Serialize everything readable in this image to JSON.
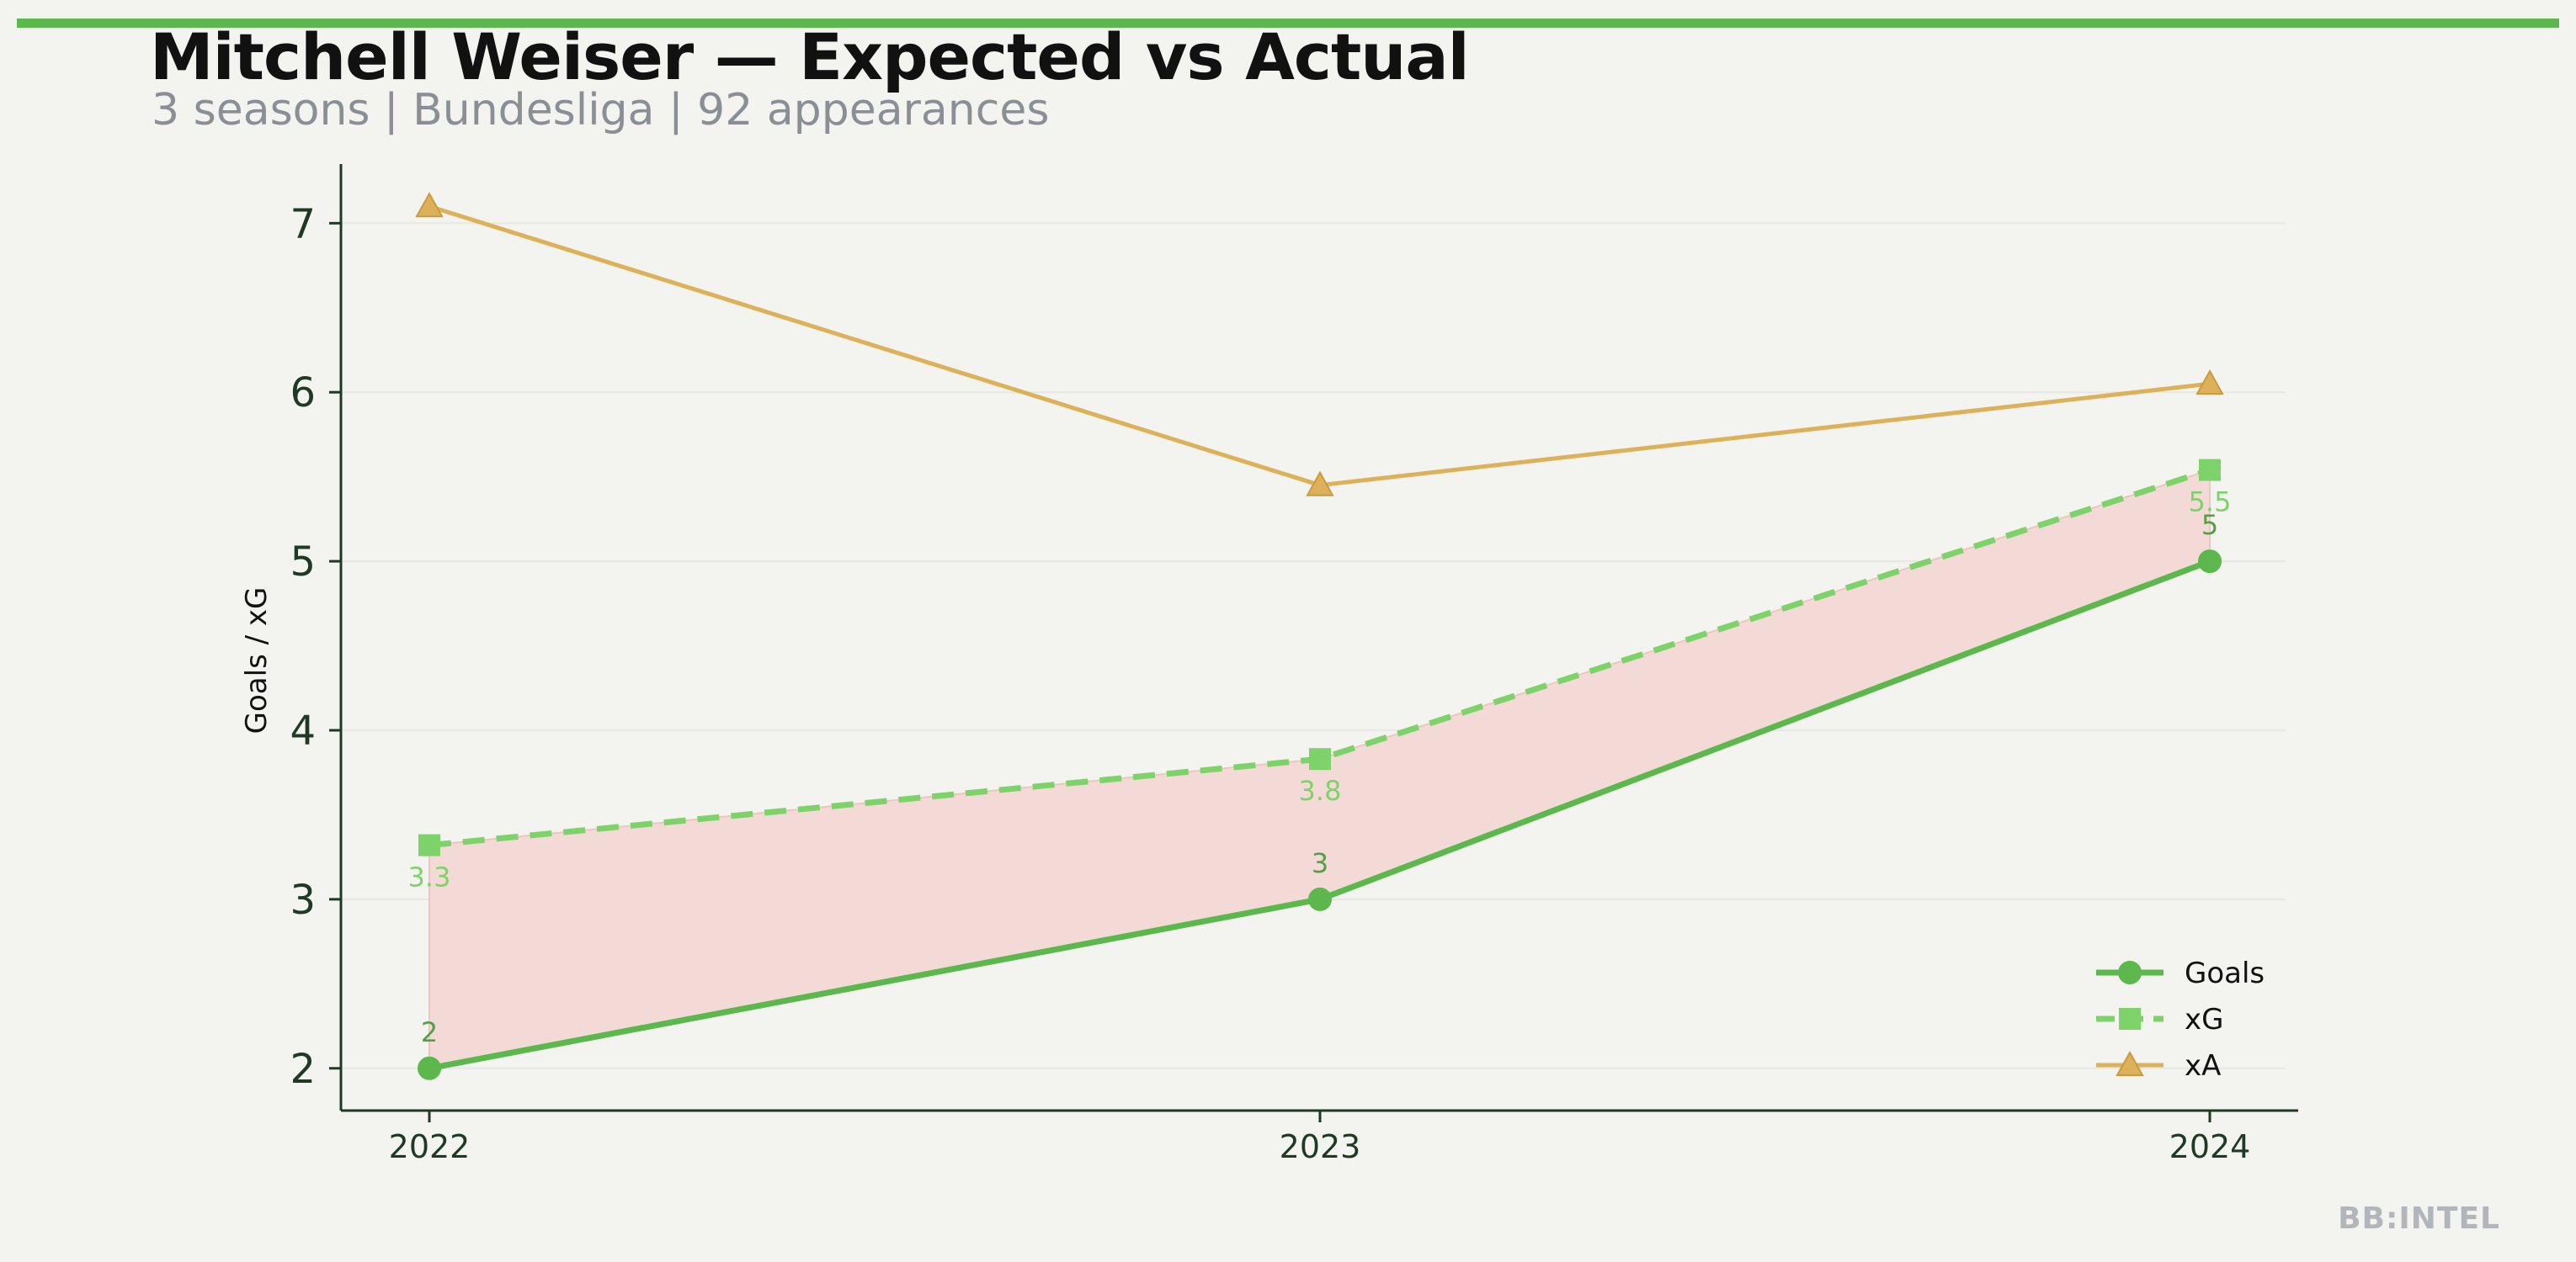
{
  "header": {
    "title": "Mitchell Weiser — Expected vs Actual",
    "subtitle": "3 seasons | Bundesliga | 92 appearances"
  },
  "footer": {
    "watermark": "BB:INTEL"
  },
  "colors": {
    "accent_bar": "#5cb84d",
    "goals": "#5cb84d",
    "xg": "#7dd36a",
    "xa": "#ddb15a",
    "fill": "#f5d9d5",
    "axis": "#1e3a24",
    "background": "#f3f4ef"
  },
  "chart_data": {
    "type": "line",
    "x": [
      "2022",
      "2023",
      "2024"
    ],
    "series": [
      {
        "name": "Goals",
        "values": [
          2,
          3,
          5
        ],
        "style": "solid",
        "marker": "circle",
        "labels": [
          "2",
          "3",
          "5"
        ]
      },
      {
        "name": "xG",
        "values": [
          3.32,
          3.83,
          5.54
        ],
        "style": "dashed",
        "marker": "square",
        "labels": [
          "3.3",
          "3.8",
          "5.5"
        ]
      },
      {
        "name": "xA",
        "values": [
          7.1,
          5.45,
          6.05
        ],
        "style": "solid",
        "marker": "triangle"
      }
    ],
    "shaded_region": "between Goals and xG",
    "ylabel": "Goals / xG",
    "xlabel": "",
    "ylim": [
      1.75,
      7.35
    ],
    "yticks": [
      2,
      3,
      4,
      5,
      6,
      7
    ],
    "grid": "horizontal",
    "legend": "bottom-right"
  }
}
